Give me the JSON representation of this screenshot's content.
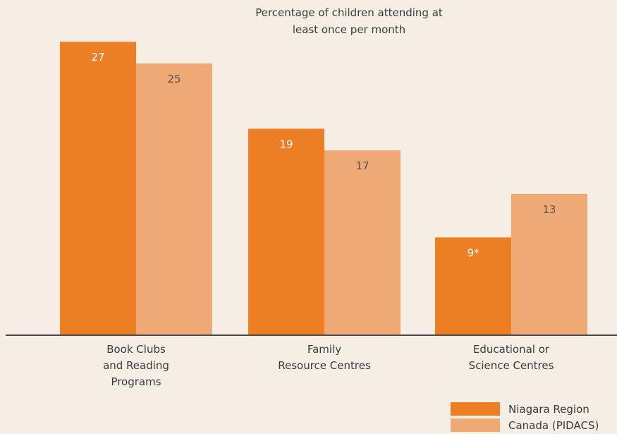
{
  "chart_data": {
    "type": "bar",
    "title_lines": [
      "Percentage of children attending at",
      "least once per month"
    ],
    "categories": [
      [
        "Book Clubs",
        "and Reading",
        "Programs"
      ],
      [
        "Family",
        "Resource Centres"
      ],
      [
        "Educational or",
        "Science Centres"
      ]
    ],
    "series": [
      {
        "name": "Niagara Region",
        "color": "#ec7f24",
        "values": [
          27,
          19,
          9
        ],
        "value_labels": [
          "27",
          "19",
          "9*"
        ],
        "label_color": "#ffffff"
      },
      {
        "name": "Canada (PIDACS)",
        "color": "#eea974",
        "values": [
          25,
          17,
          13
        ],
        "value_labels": [
          "25",
          "17",
          "13"
        ],
        "label_color": "#555555"
      }
    ],
    "ylim": [
      0,
      30
    ],
    "grid": false,
    "legend_position": "bottom-right",
    "axis_color": "#4a4a4a"
  }
}
